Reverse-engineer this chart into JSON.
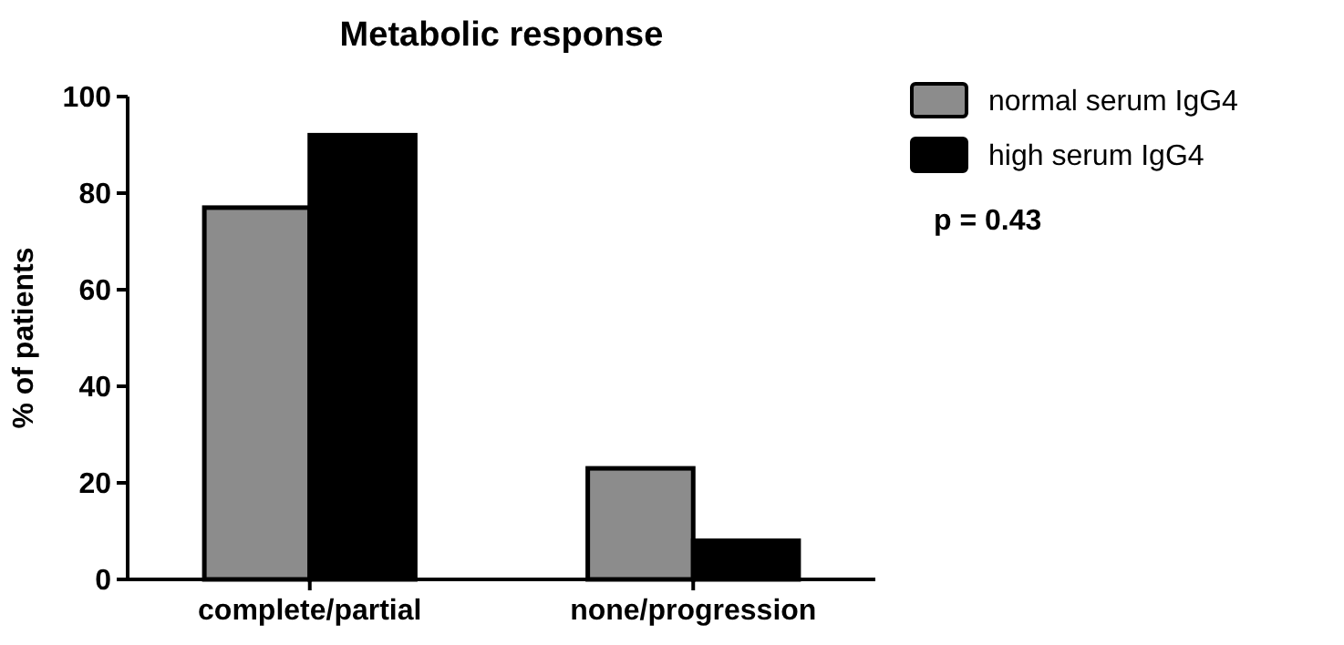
{
  "chart_data": {
    "type": "bar",
    "title": "Metabolic response",
    "ylabel": "% of patients",
    "categories": [
      "complete/partial",
      "none/progression"
    ],
    "series": [
      {
        "name": "normal serum IgG4",
        "color": "#8c8c8c",
        "values": [
          77,
          23
        ]
      },
      {
        "name": "high serum IgG4",
        "color": "#000000",
        "values": [
          92,
          8
        ]
      }
    ],
    "ylim": [
      0,
      100
    ],
    "yticks": [
      0,
      20,
      40,
      60,
      80,
      100
    ],
    "grid": false,
    "legend": "top right",
    "annotations": [
      "p = 0.43"
    ]
  }
}
